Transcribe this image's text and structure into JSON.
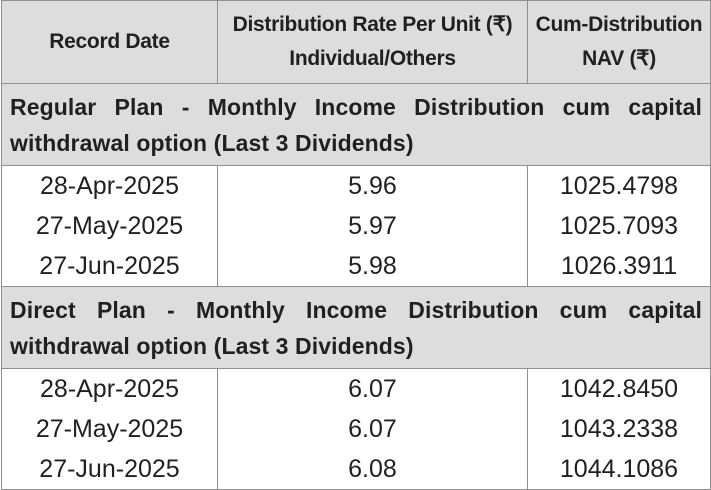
{
  "header": {
    "col1": "Record Date",
    "col2_line1": "Distribution Rate Per Unit (₹)",
    "col2_line2": "Individual/Others",
    "col3_line1": "Cum-Distribution",
    "col3_line2": "NAV (₹)"
  },
  "sections": [
    {
      "title": "Regular Plan - Monthly Income Distribution cum capital withdrawal option (Last 3 Dividends)",
      "rows": [
        {
          "date": "28-Apr-2025",
          "rate": "5.96",
          "nav": "1025.4798"
        },
        {
          "date": "27-May-2025",
          "rate": "5.97",
          "nav": "1025.7093"
        },
        {
          "date": "27-Jun-2025",
          "rate": "5.98",
          "nav": "1026.3911"
        }
      ]
    },
    {
      "title": "Direct Plan - Monthly Income Distribution cum capital withdrawal option (Last 3 Dividends)",
      "rows": [
        {
          "date": "28-Apr-2025",
          "rate": "6.07",
          "nav": "1042.8450"
        },
        {
          "date": "27-May-2025",
          "rate": "6.07",
          "nav": "1043.2338"
        },
        {
          "date": "27-Jun-2025",
          "rate": "6.08",
          "nav": "1044.1086"
        }
      ]
    }
  ]
}
